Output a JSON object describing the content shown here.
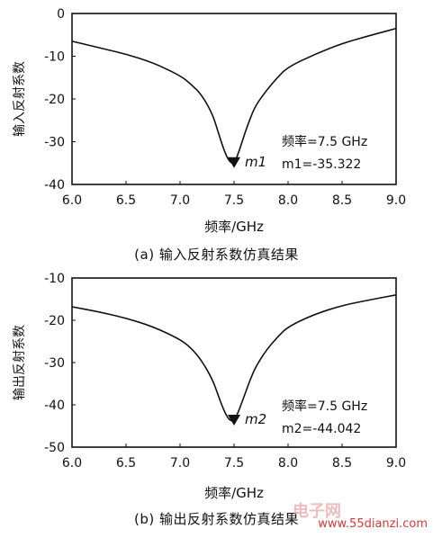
{
  "chart_data": [
    {
      "type": "line",
      "panel": "a",
      "ylabel": "输入反射系数",
      "xlabel": "频率/GHz",
      "xlim": [
        6.0,
        9.0
      ],
      "ylim": [
        -40,
        0
      ],
      "xticks": [
        "6.0",
        "6.5",
        "7.0",
        "7.5",
        "8.0",
        "8.5",
        "9.0"
      ],
      "yticks": [
        "0",
        "-10",
        "-20",
        "-30",
        "-40"
      ],
      "grid": false,
      "x": [
        6.0,
        6.25,
        6.5,
        6.75,
        7.0,
        7.1,
        7.2,
        7.3,
        7.35,
        7.4,
        7.45,
        7.5,
        7.55,
        7.6,
        7.65,
        7.7,
        7.8,
        7.9,
        8.0,
        8.25,
        8.5,
        8.75,
        9.0
      ],
      "y": [
        -6.5,
        -8.0,
        -9.5,
        -11.5,
        -14.5,
        -16.5,
        -19.0,
        -23.5,
        -27.5,
        -31.5,
        -34.5,
        -35.322,
        -32.0,
        -28.0,
        -24.5,
        -21.5,
        -18.0,
        -15.0,
        -12.5,
        -9.5,
        -7.0,
        -5.2,
        -3.5
      ],
      "marker": {
        "name": "m1",
        "x": 7.5,
        "y": -35.322,
        "freq_text": "频率=7.5 GHz",
        "value_text": "m1=-35.322"
      },
      "caption": "(a)  输入反射系数仿真结果"
    },
    {
      "type": "line",
      "panel": "b",
      "ylabel": "输出反射系数",
      "xlabel": "频率/GHz",
      "xlim": [
        6.0,
        9.0
      ],
      "ylim": [
        -50,
        -10
      ],
      "xticks": [
        "6.0",
        "6.5",
        "7.0",
        "7.5",
        "8.0",
        "8.5",
        "9.0"
      ],
      "yticks": [
        "-10",
        "-20",
        "-30",
        "-40",
        "-50"
      ],
      "grid": false,
      "x": [
        6.0,
        6.25,
        6.5,
        6.75,
        7.0,
        7.1,
        7.2,
        7.3,
        7.35,
        7.4,
        7.45,
        7.5,
        7.55,
        7.6,
        7.65,
        7.7,
        7.8,
        7.9,
        8.0,
        8.25,
        8.5,
        8.75,
        9.0
      ],
      "y": [
        -16.8,
        -18.0,
        -19.5,
        -21.5,
        -24.5,
        -26.5,
        -29.5,
        -34.0,
        -37.5,
        -41.0,
        -43.5,
        -44.042,
        -41.0,
        -37.5,
        -34.0,
        -31.0,
        -27.0,
        -24.0,
        -21.5,
        -18.5,
        -16.5,
        -15.2,
        -14.0
      ],
      "marker": {
        "name": "m2",
        "x": 7.5,
        "y": -44.042,
        "freq_text": "频率=7.5 GHz",
        "value_text": "m2=-44.042"
      },
      "caption": "(b)  输出反射系数仿真结果"
    }
  ],
  "watermark": {
    "logo": "电子网",
    "url": "www.55dianzi.com"
  }
}
